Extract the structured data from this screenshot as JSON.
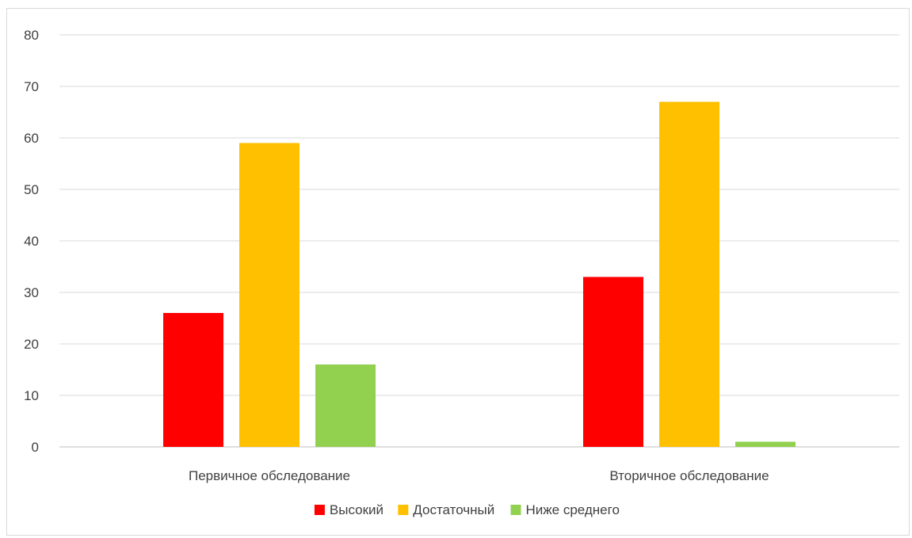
{
  "chart_data": {
    "type": "bar",
    "categories": [
      "Первичное обследование",
      "Вторичное обследование"
    ],
    "series": [
      {
        "name": "Высокий",
        "color": "#ff0000",
        "values": [
          26,
          33
        ]
      },
      {
        "name": "Достаточный",
        "color": "#ffc000",
        "values": [
          59,
          67
        ]
      },
      {
        "name": "Ниже среднего",
        "color": "#92d050",
        "values": [
          16,
          1
        ]
      }
    ],
    "title": "",
    "xlabel": "",
    "ylabel": "",
    "ylim": [
      0,
      80
    ],
    "yticks": [
      0,
      10,
      20,
      30,
      40,
      50,
      60,
      70,
      80
    ],
    "grid": true,
    "legend_position": "bottom"
  }
}
